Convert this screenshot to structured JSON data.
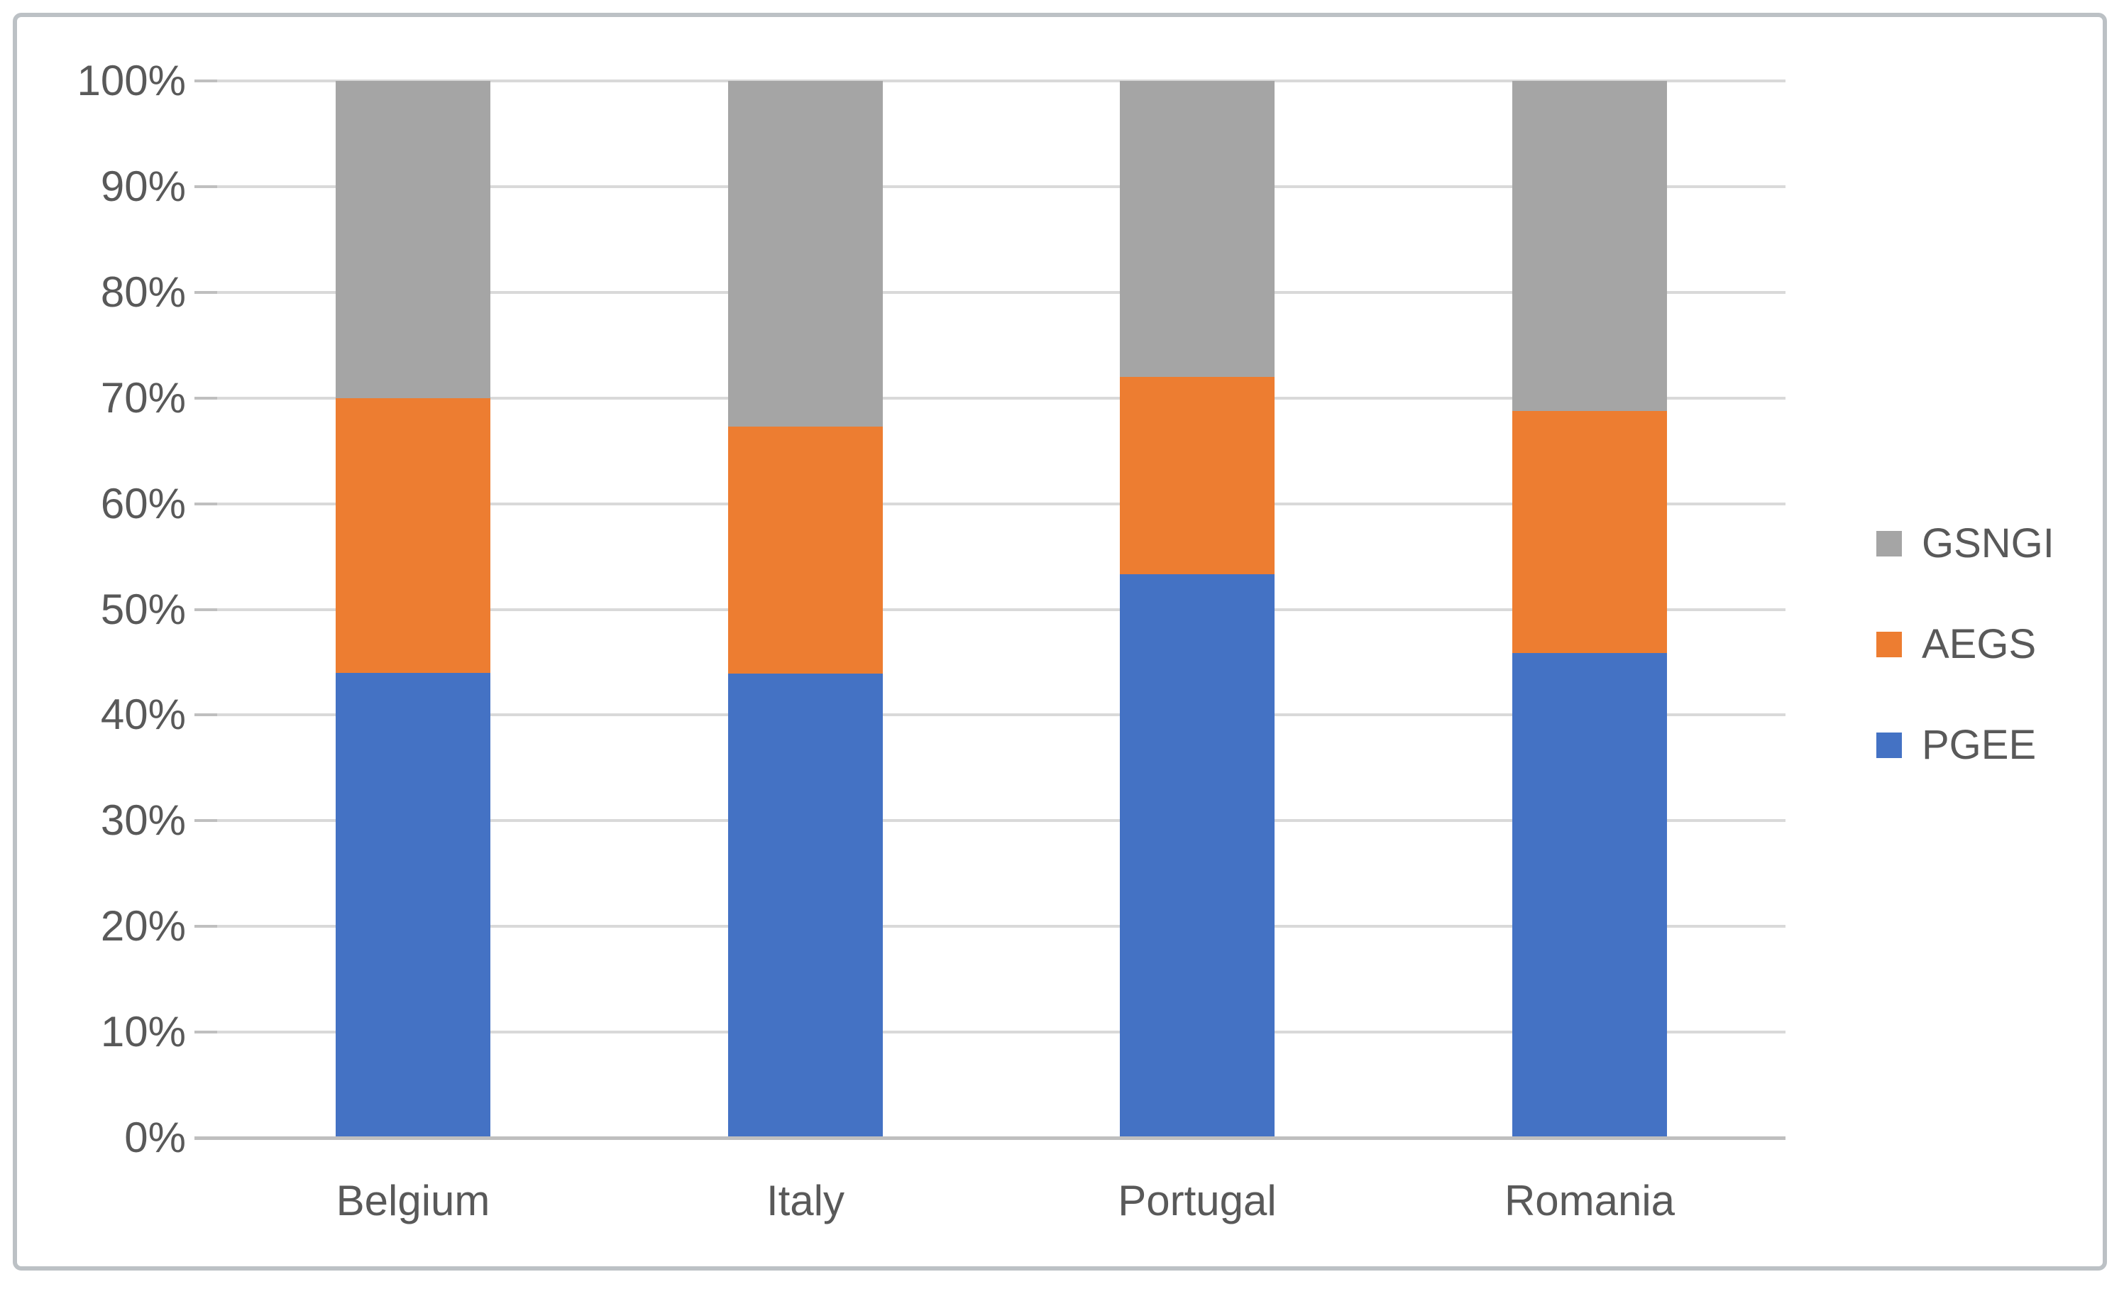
{
  "chart_data": {
    "type": "bar",
    "stacking": "percent",
    "title": "",
    "categories": [
      "Belgium",
      "Italy",
      "Portugal",
      "Romania"
    ],
    "series": [
      {
        "name": "PGEE",
        "color": "#4472C4",
        "values": [
          44.0,
          43.9,
          53.3,
          45.9
        ]
      },
      {
        "name": "AEGS",
        "color": "#ED7D31",
        "values": [
          26.0,
          23.4,
          18.7,
          22.9
        ]
      },
      {
        "name": "GSNGI",
        "color": "#A5A5A5",
        "values": [
          30.0,
          32.7,
          28.0,
          31.2
        ]
      }
    ],
    "y_axis": {
      "min": 0,
      "max": 100,
      "tick_step": 10,
      "tick_labels": [
        "0%",
        "10%",
        "20%",
        "30%",
        "40%",
        "50%",
        "60%",
        "70%",
        "80%",
        "90%",
        "100%"
      ]
    },
    "x_axis": {
      "labels": [
        "Belgium",
        "Italy",
        "Portugal",
        "Romania"
      ]
    },
    "legend": {
      "position": "right",
      "entries": [
        {
          "label": "GSNGI",
          "color": "#A5A5A5"
        },
        {
          "label": "AEGS",
          "color": "#ED7D31"
        },
        {
          "label": "PGEE",
          "color": "#4472C4"
        }
      ]
    },
    "grid": true
  },
  "styles": {
    "background": "#FFFFFF",
    "frame_border_color": "#BCC1C5",
    "gridline_color": "#D9D9D9",
    "axis_line_color": "#BFBFBF",
    "tick_color": "#BFBFBF",
    "text_color": "#595959"
  }
}
